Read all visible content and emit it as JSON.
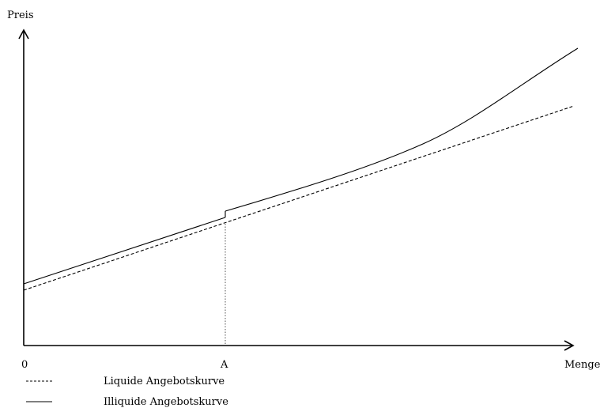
{
  "axes": {
    "y_label": "Preis",
    "x_label": "Menge",
    "origin_label": "0",
    "marker_label": "A"
  },
  "legend": {
    "items": [
      {
        "label": "Liquide Angebotskurve",
        "line_style": "dashed"
      },
      {
        "label": "Illiquide Angebotskurve",
        "line_style": "solid"
      }
    ]
  },
  "colors": {
    "ink": "#000000",
    "guide": "#555555",
    "background": "#ffffff"
  }
}
